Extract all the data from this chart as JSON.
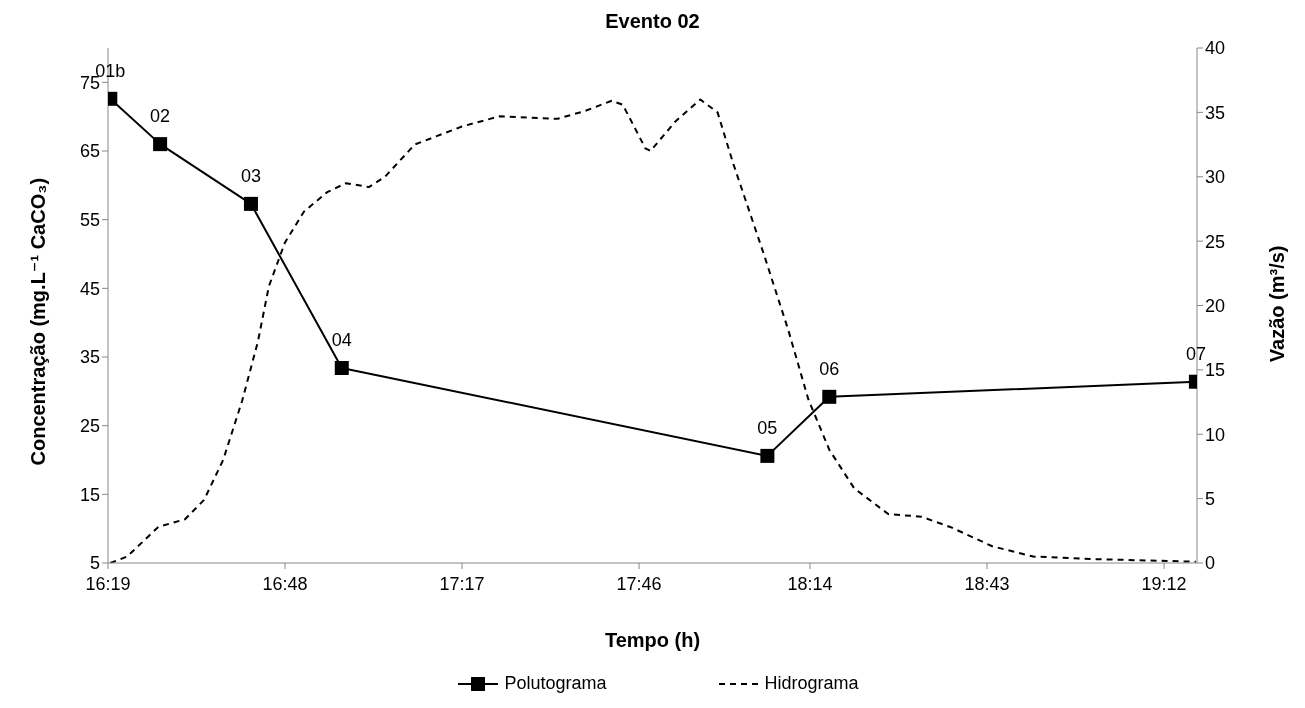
{
  "chart_data": {
    "type": "line",
    "title": "Evento 02",
    "xlabel": "Tempo (h)",
    "ylabel": "Concentração (mg.L⁻¹ CaCO₃)",
    "y2label": "Vazão (m³/s)",
    "xlim": [
      16.3167,
      19.29
    ],
    "xticks": [
      {
        "value": 16.3167,
        "label": "16:19"
      },
      {
        "value": 16.8,
        "label": "16:48"
      },
      {
        "value": 17.2833,
        "label": "17:17"
      },
      {
        "value": 17.7667,
        "label": "17:46"
      },
      {
        "value": 18.2333,
        "label": "18:14"
      },
      {
        "value": 18.7167,
        "label": "18:43"
      },
      {
        "value": 19.2,
        "label": "19:12"
      }
    ],
    "ylim": [
      5,
      80
    ],
    "yticks": [
      5,
      15,
      25,
      35,
      45,
      55,
      65,
      75
    ],
    "y2lim": [
      0,
      40
    ],
    "y2ticks": [
      0,
      5,
      10,
      15,
      20,
      25,
      30,
      35,
      40
    ],
    "grid": false,
    "legend": "bottom",
    "series": [
      {
        "name": "Polutograma",
        "color": "#000000",
        "marker": "square",
        "line_style": "solid",
        "x": [
          16.323,
          16.459,
          16.707,
          16.955,
          18.117,
          18.286,
          19.287
        ],
        "values": [
          72.6,
          66,
          57.3,
          33.4,
          20.6,
          29.2,
          31.4
        ]
      },
      {
        "name": "Hidrograma",
        "color": "#000000",
        "marker": "none",
        "line_style": "dashed",
        "axis": "y2",
        "x": [
          16.323,
          16.369,
          16.454,
          16.527,
          16.579,
          16.631,
          16.683,
          16.726,
          16.756,
          16.8,
          16.852,
          16.915,
          16.966,
          17.029,
          17.073,
          17.154,
          17.283,
          17.386,
          17.544,
          17.618,
          17.692,
          17.722,
          17.784,
          17.798,
          17.866,
          17.934,
          17.981,
          18.024,
          18.106,
          18.174,
          18.229,
          18.286,
          18.354,
          18.447,
          18.537,
          18.616,
          18.731,
          18.843,
          19.014,
          19.287
        ],
        "values": [
          0,
          0.5,
          2.8,
          3.4,
          4.9,
          8,
          12.6,
          17.2,
          21.5,
          24.9,
          27.3,
          28.8,
          29.5,
          29.2,
          30,
          32.5,
          33.9,
          34.7,
          34.5,
          35.1,
          35.9,
          35.6,
          32.2,
          32,
          34.3,
          36,
          35,
          31,
          24.1,
          18.1,
          12.7,
          8.8,
          5.8,
          3.8,
          3.6,
          2.8,
          1.3,
          0.5,
          0.3,
          0.1
        ]
      }
    ],
    "annotations": [
      {
        "text": "01b",
        "x": 16.323,
        "y": 72.6
      },
      {
        "text": "02",
        "x": 16.459,
        "y": 66
      },
      {
        "text": "03",
        "x": 16.707,
        "y": 57.3
      },
      {
        "text": "04",
        "x": 16.955,
        "y": 33.4
      },
      {
        "text": "05",
        "x": 18.117,
        "y": 20.6
      },
      {
        "text": "06",
        "x": 18.286,
        "y": 29.2
      },
      {
        "text": "07",
        "x": 19.287,
        "y": 31.4
      }
    ]
  }
}
